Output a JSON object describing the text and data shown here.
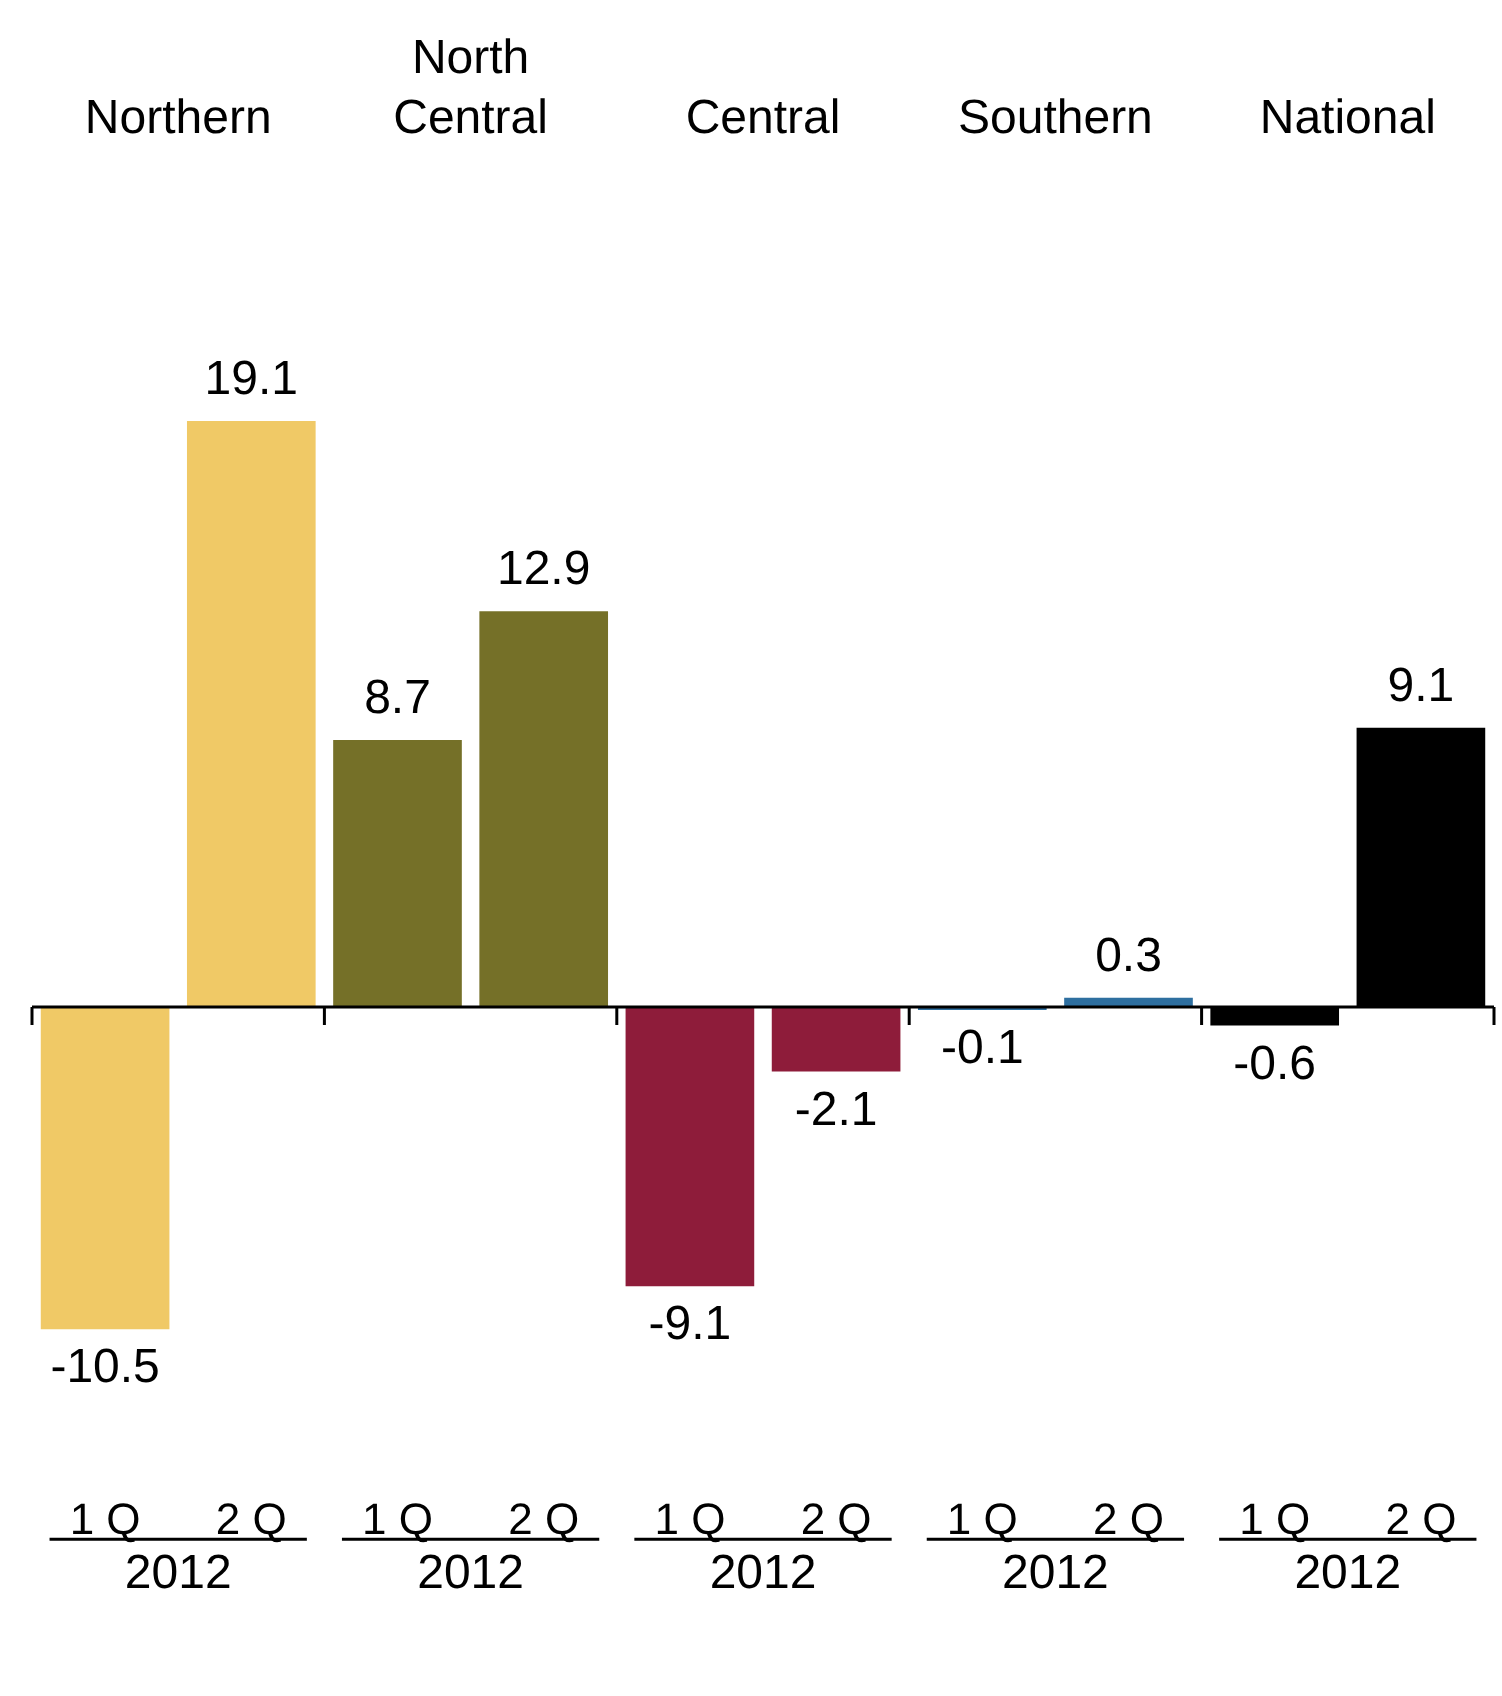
{
  "chart_data": {
    "type": "bar",
    "relative": false,
    "categories": [
      "1 Q",
      "2 Q",
      "1 Q",
      "2 Q",
      "1 Q",
      "2 Q",
      "1 Q",
      "2 Q",
      "1 Q",
      "2 Q"
    ],
    "values": [
      -10.5,
      19.1,
      8.7,
      12.9,
      -9.1,
      -2.1,
      -0.1,
      0.3,
      -0.6,
      9.1
    ],
    "colors": [
      "#f0c966",
      "#f0c966",
      "#757028",
      "#757028",
      "#8e1c3a",
      "#8e1c3a",
      "#2e6fa0",
      "#2e6fa0",
      "#000000",
      "#000000"
    ],
    "data_labels": true,
    "grid": false,
    "legend": false,
    "annotations": [
      "Northern",
      "North Central",
      "Central",
      "Southern",
      "National",
      "2012",
      "2012",
      "2012",
      "2012",
      "2012"
    ]
  }
}
